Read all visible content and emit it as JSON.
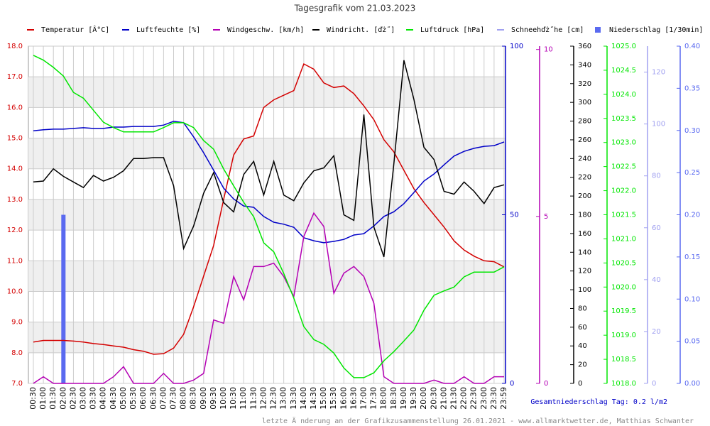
{
  "chart_data": {
    "type": "line",
    "title": "Tagesgrafik vom 21.03.2023",
    "annotations": [
      "Gesamtniederschlag Tag: 0.2 l/m2",
      "letzte Ä nderung an der Grafikzusammenstellung 26.01.2021 - www.allmarktwetter.de, Matthias Schwanter"
    ],
    "grid": true,
    "categories": [
      "00:30",
      "01:00",
      "01:30",
      "02:00",
      "02:30",
      "03:00",
      "03:30",
      "04:00",
      "04:30",
      "05:00",
      "05:30",
      "06:00",
      "06:30",
      "07:00",
      "07:30",
      "08:00",
      "08:30",
      "09:00",
      "09:30",
      "10:00",
      "10:30",
      "11:00",
      "11:30",
      "12:00",
      "12:30",
      "13:00",
      "13:30",
      "14:00",
      "14:30",
      "15:00",
      "15:30",
      "16:00",
      "16:30",
      "17:00",
      "17:30",
      "18:00",
      "18:30",
      "19:00",
      "19:30",
      "20:00",
      "20:30",
      "21:00",
      "21:30",
      "22:00",
      "22:30",
      "23:00",
      "23:30",
      "23:59"
    ],
    "ylim": [
      7,
      18
    ],
    "yticks": [
      {
        "value": 7,
        "label": "7.0"
      },
      {
        "value": 8,
        "label": "8.0"
      },
      {
        "value": 9,
        "label": "9.0"
      },
      {
        "value": 10,
        "label": "10.0"
      },
      {
        "value": 11,
        "label": "11.0"
      },
      {
        "value": 12,
        "label": "12.0"
      },
      {
        "value": 13,
        "label": "13.0"
      },
      {
        "value": 14,
        "label": "14.0"
      },
      {
        "value": 15,
        "label": "15.0"
      },
      {
        "value": 16,
        "label": "16.0"
      },
      {
        "value": 17,
        "label": "17.0"
      },
      {
        "value": 18,
        "label": "18.0"
      }
    ],
    "y2lim": [
      0,
      100
    ],
    "y2ticks": [
      0,
      50,
      100
    ],
    "y3lim": [
      0,
      10.1
    ],
    "y3ticks": [
      0,
      5,
      10
    ],
    "y4lim": [
      0,
      360
    ],
    "y4ticks": [
      0,
      20,
      40,
      60,
      80,
      100,
      120,
      140,
      160,
      180,
      200,
      220,
      240,
      260,
      280,
      300,
      320,
      340,
      360
    ],
    "y5lim": [
      1018,
      1025
    ],
    "y5ticks": [
      {
        "value": 1018,
        "label": "1018.0"
      },
      1018.5,
      {
        "value": 1019,
        "label": "1019.0"
      },
      1019.5,
      {
        "value": 1020,
        "label": "1020.0"
      },
      1020.5,
      {
        "value": 1021,
        "label": "1021.0"
      },
      1021.5,
      {
        "value": 1022,
        "label": "1022.0"
      },
      1022.5,
      {
        "value": 1023,
        "label": "1023.0"
      },
      1023.5,
      {
        "value": 1024,
        "label": "1024.0"
      },
      1024.5,
      {
        "value": 1025,
        "label": "1025.0"
      }
    ],
    "y6lim": [
      0,
      130
    ],
    "y6ticks": [
      0,
      20,
      40,
      60,
      80,
      100,
      120
    ],
    "y7lim": [
      0,
      0.4
    ],
    "y7ticks": [
      {
        "value": 0,
        "label": "0.00"
      },
      0.05,
      {
        "value": 0.1,
        "label": "0.10"
      },
      0.15,
      {
        "value": 0.2,
        "label": "0.20"
      },
      0.25,
      {
        "value": 0.3,
        "label": "0.30"
      },
      0.35,
      {
        "value": 0.4,
        "label": "0.40"
      }
    ],
    "series": [
      {
        "name": "Temperatur [Â°C]",
        "color": "#d40000",
        "type": "line",
        "axis": "y",
        "values": [
          8.35,
          8.4,
          8.4,
          8.4,
          8.38,
          8.35,
          8.3,
          8.27,
          8.22,
          8.18,
          8.1,
          8.05,
          7.95,
          7.97,
          8.15,
          8.6,
          9.5,
          10.5,
          11.5,
          13.0,
          14.45,
          14.97,
          15.07,
          16.0,
          16.25,
          16.4,
          16.55,
          17.42,
          17.25,
          16.8,
          16.65,
          16.7,
          16.45,
          16.05,
          15.6,
          14.95,
          14.55,
          13.95,
          13.35,
          12.9,
          12.5,
          12.1,
          11.65,
          11.35,
          11.15,
          11.0,
          10.97,
          10.8
        ]
      },
      {
        "name": "Luftfeuchte [%]",
        "color": "#0000c8",
        "type": "line",
        "axis": "y2",
        "values": [
          74.9,
          75.2,
          75.4,
          75.4,
          75.6,
          75.8,
          75.6,
          75.6,
          76.0,
          76.0,
          76.2,
          76.2,
          76.2,
          76.6,
          77.7,
          77.3,
          73.1,
          68.4,
          63.2,
          57.9,
          54.7,
          52.6,
          52.2,
          49.5,
          47.8,
          47.2,
          46.3,
          43.2,
          42.3,
          41.7,
          42.1,
          42.7,
          44.0,
          44.4,
          46.7,
          49.5,
          50.9,
          53.3,
          56.6,
          60.0,
          62.1,
          64.8,
          67.4,
          68.8,
          69.7,
          70.3,
          70.5,
          71.6
        ]
      },
      {
        "name": "Windgeschw. [km/h]",
        "color": "#b400b4",
        "type": "line",
        "axis": "y3",
        "values": [
          0,
          0.2,
          0,
          0,
          0,
          0,
          0,
          0,
          0.2,
          0.5,
          0,
          0,
          0,
          0.3,
          0,
          0,
          0.1,
          0.3,
          1.9,
          1.8,
          3.2,
          2.5,
          3.5,
          3.5,
          3.6,
          3.2,
          2.6,
          4.4,
          5.1,
          4.7,
          2.7,
          3.3,
          3.5,
          3.2,
          2.4,
          0.2,
          0,
          0,
          0,
          0,
          0.1,
          0,
          0,
          0.2,
          0,
          0,
          0.2,
          0.2
        ]
      },
      {
        "name": "Windricht. [ďż˝]",
        "color": "#000000",
        "type": "line",
        "axis": "y4",
        "values": [
          215,
          216,
          229,
          221,
          215,
          209,
          222,
          216,
          220,
          227,
          240,
          240,
          241,
          241,
          211,
          144,
          168,
          203,
          225,
          193,
          183,
          223,
          237,
          201,
          237,
          201,
          195,
          214,
          227,
          230,
          243,
          180,
          174,
          287,
          167,
          135,
          235,
          345,
          303,
          252,
          239,
          205,
          202,
          215,
          205,
          192,
          209,
          212
        ]
      },
      {
        "name": "Luftdruck [hPa]",
        "color": "#00e600",
        "type": "line",
        "axis": "y5",
        "values": [
          1024.81,
          1024.71,
          1024.56,
          1024.38,
          1024.04,
          1023.92,
          1023.67,
          1023.42,
          1023.31,
          1023.22,
          1023.22,
          1023.22,
          1023.22,
          1023.31,
          1023.41,
          1023.41,
          1023.31,
          1023.04,
          1022.86,
          1022.45,
          1022.1,
          1021.76,
          1021.46,
          1020.92,
          1020.73,
          1020.28,
          1019.77,
          1019.18,
          1018.91,
          1018.81,
          1018.63,
          1018.32,
          1018.12,
          1018.12,
          1018.22,
          1018.47,
          1018.66,
          1018.88,
          1019.11,
          1019.52,
          1019.83,
          1019.92,
          1020.0,
          1020.21,
          1020.31,
          1020.31,
          1020.31,
          1020.42
        ]
      },
      {
        "name": "Schneehďż˝he [cm]",
        "color": "#a0a0f0",
        "type": "line",
        "axis": "y6",
        "values": [
          null,
          null,
          null,
          null,
          null,
          null,
          null,
          null,
          null,
          null,
          null,
          null,
          null,
          null,
          null,
          null,
          null,
          null,
          null,
          null,
          null,
          null,
          null,
          null,
          null,
          null,
          null,
          null,
          null,
          null,
          null,
          null,
          null,
          null,
          null,
          null,
          null,
          null,
          null,
          null,
          null,
          null,
          null,
          null,
          null,
          null,
          null,
          null
        ]
      },
      {
        "name": "Niederschlag [1/30min]",
        "color": "#5a6af0",
        "type": "bar",
        "axis": "y7",
        "values": [
          0,
          0,
          0,
          0.2,
          0,
          0,
          0,
          0,
          0,
          0,
          0,
          0,
          0,
          0,
          0,
          0,
          0,
          0,
          0,
          0,
          0,
          0,
          0,
          0,
          0,
          0,
          0,
          0,
          0,
          0,
          0,
          0,
          0,
          0,
          0,
          0,
          0,
          0,
          0,
          0,
          0,
          0,
          0,
          0,
          0,
          0,
          0,
          0
        ]
      }
    ]
  }
}
